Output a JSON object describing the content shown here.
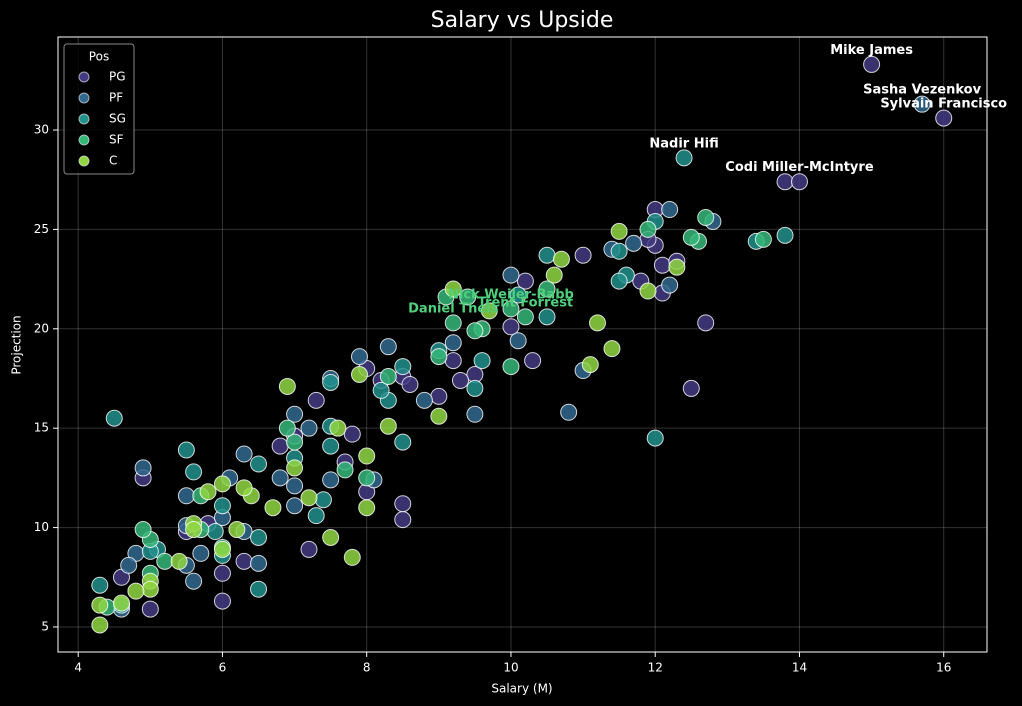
{
  "chart_data": {
    "type": "scatter",
    "title": "Salary vs Upside",
    "x_label": "Salary (M)",
    "y_label": "Projection",
    "xlim": [
      3.72,
      16.6
    ],
    "ylim": [
      3.74,
      34.68
    ],
    "xticks": [
      4,
      6,
      8,
      10,
      12,
      14,
      16
    ],
    "yticks": [
      5,
      10,
      15,
      20,
      25,
      30
    ],
    "grid": true,
    "legend_title": "Pos",
    "legend_position": "upper-left",
    "series": [
      {
        "name": "PG",
        "color": "#443983",
        "x": [
          15,
          16,
          13.8,
          14,
          12,
          12,
          12.1,
          12.3,
          12.1,
          12.7,
          12.5,
          11,
          10.2,
          10,
          10.3,
          9.5,
          9.3,
          9.2,
          9,
          8.5,
          8.6,
          8.2,
          8,
          7.8,
          7.7,
          7.3,
          6.8,
          7,
          8,
          8.5,
          8.5,
          7.2,
          6,
          6,
          5,
          4.9,
          4.6,
          5.5,
          6.3,
          5.8,
          11.8,
          11.9
        ],
        "y": [
          33.3,
          30.6,
          27.4,
          27.4,
          26,
          24.2,
          23.2,
          23.4,
          21.8,
          20.3,
          17,
          23.7,
          22.4,
          20.1,
          18.4,
          17.7,
          17.4,
          18.4,
          16.6,
          17.6,
          17.2,
          17.4,
          18,
          14.7,
          13.3,
          16.4,
          14.1,
          14.6,
          11.8,
          11.2,
          10.4,
          8.9,
          7.7,
          6.3,
          5.9,
          12.5,
          7.5,
          9.8,
          8.3,
          10.2,
          22.4,
          24.5
        ]
      },
      {
        "name": "PF",
        "color": "#31688e",
        "x": [
          15.7,
          12.2,
          12.8,
          12.2,
          11.4,
          11.7,
          10.8,
          9.5,
          10.1,
          10,
          9.2,
          8.3,
          7.9,
          8.8,
          7,
          7.2,
          7.5,
          7,
          7,
          7.5,
          6.3,
          6.1,
          5.5,
          5.5,
          6,
          6.3,
          6.5,
          5.6,
          5.7,
          4.9,
          4.8,
          4.7,
          4.6,
          5.5,
          8.1,
          11,
          6.8
        ],
        "y": [
          31.3,
          26,
          25.4,
          22.2,
          24,
          24.3,
          15.8,
          15.7,
          19.4,
          22.7,
          19.3,
          19.1,
          18.6,
          16.4,
          15.7,
          15,
          17.5,
          12.1,
          11.1,
          12.4,
          13.7,
          12.5,
          11.6,
          10.1,
          10.5,
          9.8,
          8.2,
          7.3,
          8.7,
          13,
          8.7,
          8.1,
          5.9,
          8.1,
          12.4,
          17.9,
          12.5
        ]
      },
      {
        "name": "SG",
        "color": "#21918c",
        "x": [
          12.4,
          13.8,
          13.4,
          12,
          11.5,
          11.6,
          10.5,
          10.5,
          9.6,
          9.5,
          9,
          8.5,
          8.5,
          8.3,
          8.2,
          7.5,
          7.5,
          7.5,
          7.4,
          7.3,
          7,
          6.5,
          6.5,
          6.5,
          6,
          6,
          5.9,
          5.6,
          5.5,
          5.1,
          5,
          4.5,
          4.3,
          4.6,
          12,
          11.5,
          10.1
        ],
        "y": [
          28.6,
          24.7,
          24.4,
          25.4,
          23.9,
          22.7,
          23.7,
          20.6,
          18.4,
          17,
          18.9,
          18.1,
          14.3,
          16.4,
          16.9,
          17.3,
          15.1,
          14.1,
          11.4,
          10.6,
          13.5,
          13.2,
          9.5,
          6.9,
          11.1,
          8.6,
          9.8,
          12.8,
          13.9,
          8.9,
          8.8,
          15.5,
          7.1,
          6.1,
          14.5,
          22.4,
          21.7
        ]
      },
      {
        "name": "SF",
        "color": "#35b779",
        "x": [
          12.7,
          12.6,
          12.5,
          13.5,
          11.9,
          10.5,
          10,
          9.6,
          9.5,
          9,
          9.1,
          9.4,
          8.3,
          7.7,
          8,
          7,
          6.9,
          5.7,
          6,
          5.2,
          5,
          5,
          4.9,
          4.4,
          5.7,
          10,
          10.2,
          9.2
        ],
        "y": [
          25.6,
          24.4,
          24.6,
          24.5,
          25,
          22,
          18.1,
          20,
          19.9,
          18.6,
          21.6,
          21.6,
          17.6,
          12.9,
          12.5,
          14.3,
          15,
          11.6,
          9,
          8.3,
          9.4,
          7.7,
          9.9,
          6,
          9.9,
          21,
          20.6,
          20.3
        ]
      },
      {
        "name": "C",
        "color": "#90d743",
        "x": [
          11.5,
          11.9,
          12.3,
          10.7,
          10.6,
          11.2,
          11.4,
          11.1,
          9.7,
          9.2,
          9,
          8.3,
          7.9,
          7.6,
          6.9,
          7,
          7.2,
          7.5,
          7.8,
          8,
          8,
          6.7,
          6.4,
          6.3,
          6.2,
          6,
          5.8,
          5.4,
          5.6,
          5.6,
          5,
          5,
          4.8,
          4.6,
          4.3,
          4.3,
          6
        ],
        "y": [
          24.9,
          21.9,
          23.1,
          23.5,
          22.7,
          20.3,
          19,
          18.2,
          20.9,
          22,
          15.6,
          15.1,
          17.7,
          15,
          17.1,
          13,
          11.5,
          9.5,
          8.5,
          11,
          13.6,
          11,
          11.6,
          12,
          9.9,
          12.2,
          11.8,
          8.3,
          10.2,
          9.9,
          7.3,
          6.9,
          6.8,
          6.2,
          5.1,
          6.1,
          8.9
        ]
      }
    ],
    "annotations": [
      {
        "text": "Mike James",
        "x": 15,
        "y": 33.3,
        "color": "#ffffff"
      },
      {
        "text": "Sasha Vezenkov",
        "x": 15.7,
        "y": 31.3,
        "color": "#ffffff"
      },
      {
        "text": "Sylvain Francisco",
        "x": 16,
        "y": 30.6,
        "color": "#ffffff"
      },
      {
        "text": "Nadir Hifi",
        "x": 12.4,
        "y": 28.6,
        "color": "#ffffff"
      },
      {
        "text": "Codi Miller-McIntyre",
        "x": 14,
        "y": 27.4,
        "color": "#ffffff"
      },
      {
        "text": "Nick Weiler-Babb",
        "x": 10,
        "y": 21,
        "color": "#4ed07c"
      },
      {
        "text": "Trent Forrest",
        "x": 10.2,
        "y": 20.6,
        "color": "#4ed07c"
      },
      {
        "text": "Daniel Theis",
        "x": 9.2,
        "y": 20.3,
        "color": "#4ed07c"
      }
    ]
  }
}
